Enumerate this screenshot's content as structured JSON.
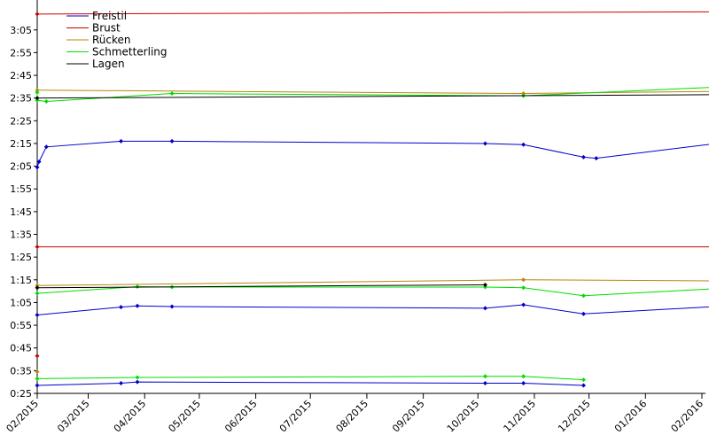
{
  "chart_data": {
    "type": "line",
    "title": "",
    "xlabel": "",
    "ylabel": "",
    "grid": false,
    "legend_position": "top-left",
    "x_ticks": [
      "02/2015",
      "03/2015",
      "04/2015",
      "05/2015",
      "06/2015",
      "07/2015",
      "08/2015",
      "09/2015",
      "10/2015",
      "11/2015",
      "12/2015",
      "01/2016",
      "02/2016"
    ],
    "y_ticks": [
      "0:25",
      "0:35",
      "0:45",
      "0:55",
      "1:05",
      "1:15",
      "1:25",
      "1:35",
      "1:45",
      "1:55",
      "2:05",
      "2:15",
      "2:25",
      "2:35",
      "2:45",
      "2:55",
      "3:05"
    ],
    "series": [
      {
        "name": "Freistil",
        "color": "#0000cc",
        "segments": [
          [
            [
              "2015-02-01",
              "0:28.5"
            ],
            [
              "2015-03-19",
              "0:29.5"
            ],
            [
              "2015-03-28",
              "0:30"
            ],
            [
              "2015-10-05",
              "0:29.5"
            ],
            [
              "2015-10-26",
              "0:29.5"
            ],
            [
              "2015-11-28",
              "0:28.5"
            ]
          ],
          [
            [
              "2015-02-01",
              "0:59.5"
            ],
            [
              "2015-03-19",
              "1:03"
            ],
            [
              "2015-03-28",
              "1:03.5"
            ],
            [
              "2015-04-16",
              "1:03.2"
            ],
            [
              "2015-10-05",
              "1:02.5"
            ],
            [
              "2015-10-26",
              "1:04"
            ],
            [
              "2015-11-28",
              "1:00"
            ],
            [
              "2016-02-14",
              "1:03.5"
            ]
          ],
          [
            [
              "2015-02-01",
              "2:04.5"
            ],
            [
              "2015-02-02",
              "2:07"
            ],
            [
              "2015-02-06",
              "2:13.5"
            ],
            [
              "2015-03-19",
              "2:16"
            ],
            [
              "2015-04-16",
              "2:16"
            ],
            [
              "2015-10-05",
              "2:15"
            ],
            [
              "2015-10-26",
              "2:14.5"
            ],
            [
              "2015-11-28",
              "2:09"
            ],
            [
              "2015-12-05",
              "2:08.5"
            ],
            [
              "2016-02-14",
              "2:15.5"
            ]
          ]
        ]
      },
      {
        "name": "Brust",
        "color": "#cc0000",
        "segments": [
          [
            [
              "2015-02-01",
              "0:41.5"
            ]
          ],
          [
            [
              "2015-02-01",
              "1:29.5"
            ],
            [
              "2016-02-14",
              "1:29.5"
            ]
          ],
          [
            [
              "2015-02-01",
              "3:12"
            ],
            [
              "2016-02-14",
              "3:13"
            ]
          ]
        ]
      },
      {
        "name": "Rücken",
        "color": "#b8860b",
        "segments": [
          [
            [
              "2015-02-01",
              "0:34.5"
            ]
          ],
          [
            [
              "2015-02-01",
              "1:12.5"
            ],
            [
              "2015-10-26",
              "1:15"
            ],
            [
              "2016-02-14",
              "1:14.5"
            ]
          ],
          [
            [
              "2015-02-01",
              "2:38.5"
            ],
            [
              "2015-10-26",
              "2:37"
            ],
            [
              "2016-02-14",
              "2:38"
            ]
          ]
        ]
      },
      {
        "name": "Schmetterling",
        "color": "#00dd00",
        "segments": [
          [
            [
              "2015-02-01",
              "0:31.5"
            ],
            [
              "2015-03-28",
              "0:32"
            ],
            [
              "2015-10-05",
              "0:32.5"
            ],
            [
              "2015-10-26",
              "0:32.5"
            ],
            [
              "2015-11-28",
              "0:31"
            ]
          ],
          [
            [
              "2015-02-01",
              "1:09"
            ],
            [
              "2015-03-28",
              "1:12"
            ],
            [
              "2015-04-16",
              "1:11.8"
            ],
            [
              "2015-10-05",
              "1:11.8"
            ],
            [
              "2015-10-26",
              "1:11.5"
            ],
            [
              "2015-11-28",
              "1:08"
            ],
            [
              "2016-02-14",
              "1:11.3"
            ]
          ],
          [
            [
              "2015-02-01",
              "2:37.5"
            ],
            [
              "2015-02-01",
              "2:34"
            ],
            [
              "2015-02-06",
              "2:33.5"
            ],
            [
              "2015-04-16",
              "2:37"
            ],
            [
              "2015-10-26",
              "2:36"
            ],
            [
              "2016-02-14",
              "2:40"
            ]
          ]
        ]
      },
      {
        "name": "Lagen",
        "color": "#000000",
        "segments": [
          [
            [
              "2015-02-01",
              "1:11.5"
            ],
            [
              "2015-10-05",
              "1:12.8"
            ]
          ],
          [
            [
              "2015-02-01",
              "2:35"
            ],
            [
              "2016-02-14",
              "2:36.5"
            ]
          ]
        ]
      }
    ]
  }
}
